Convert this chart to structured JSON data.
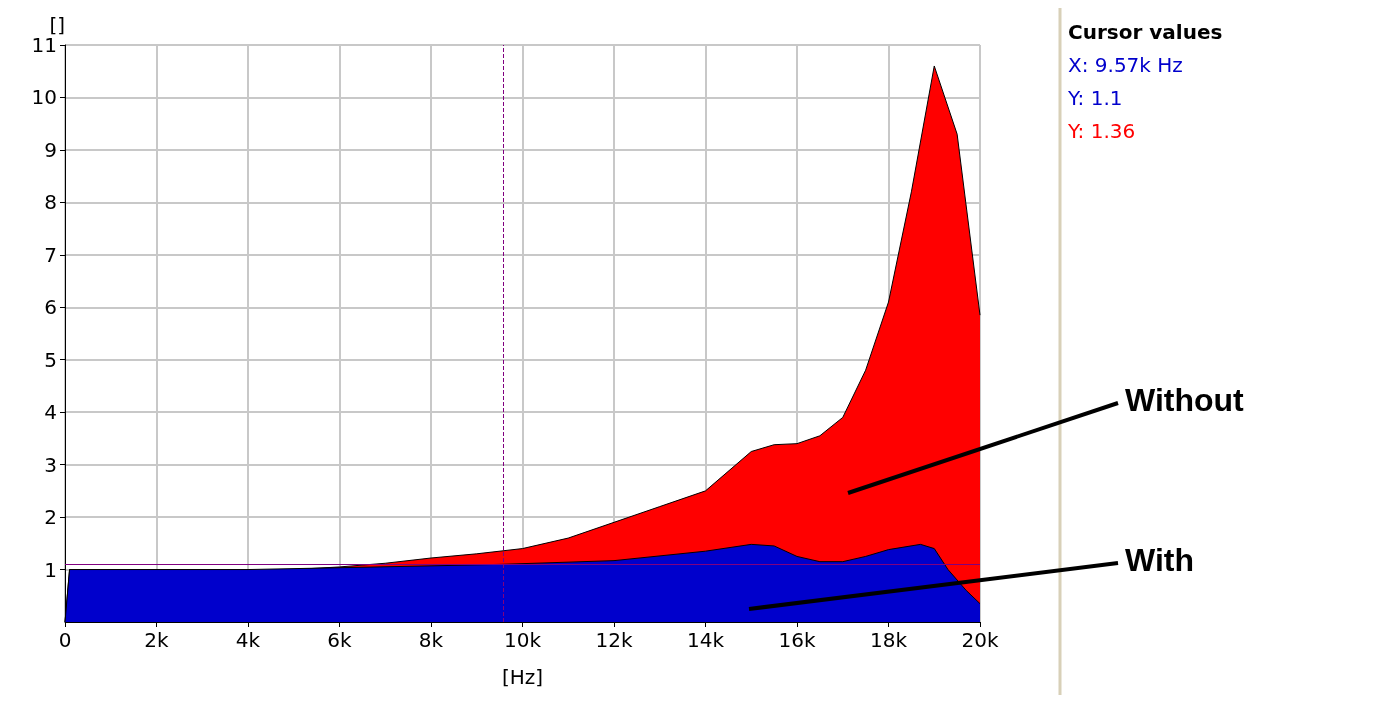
{
  "chart_data": {
    "type": "area",
    "xlabel": "[Hz]",
    "ylabel": "[]",
    "xlim": [
      0,
      20000
    ],
    "ylim": [
      0,
      11
    ],
    "xticks": [
      0,
      {
        "value": 2000,
        "label": "2k"
      },
      {
        "value": 4000,
        "label": "4k"
      },
      {
        "value": 6000,
        "label": "6k"
      },
      {
        "value": 8000,
        "label": "8k"
      },
      {
        "value": 10000,
        "label": "10k"
      },
      {
        "value": 12000,
        "label": "12k"
      },
      {
        "value": 14000,
        "label": "14k"
      },
      {
        "value": 16000,
        "label": "16k"
      },
      {
        "value": 18000,
        "label": "18k"
      },
      {
        "value": 20000,
        "label": "20k"
      }
    ],
    "yticks": [
      1,
      2,
      3,
      4,
      5,
      6,
      7,
      8,
      9,
      10,
      11
    ],
    "grid": true,
    "series": [
      {
        "name": "Without",
        "color": "#ff0000",
        "x": [
          0,
          100,
          2000,
          4000,
          5000,
          6000,
          7000,
          8000,
          9000,
          10000,
          11000,
          12000,
          13000,
          14000,
          15000,
          15500,
          16000,
          16500,
          17000,
          17500,
          18000,
          18500,
          19000,
          19500,
          20000
        ],
        "values": [
          0,
          1.0,
          1.0,
          0.97,
          1.0,
          1.05,
          1.12,
          1.22,
          1.3,
          1.4,
          1.6,
          1.9,
          2.2,
          2.5,
          3.25,
          3.38,
          3.4,
          3.55,
          3.9,
          4.8,
          6.1,
          8.2,
          10.6,
          9.3,
          5.85
        ]
      },
      {
        "name": "With",
        "color": "#0000cc",
        "x": [
          0,
          100,
          4000,
          8000,
          9570,
          12000,
          14000,
          15000,
          15500,
          16000,
          16500,
          17000,
          17500,
          18000,
          18700,
          19000,
          19300,
          19700,
          20000
        ],
        "values": [
          0,
          1.0,
          1.0,
          1.07,
          1.1,
          1.17,
          1.35,
          1.48,
          1.45,
          1.25,
          1.15,
          1.15,
          1.25,
          1.38,
          1.48,
          1.4,
          1.0,
          0.6,
          0.35
        ]
      }
    ],
    "ref_lines": [
      {
        "axis": "x",
        "value": 9570,
        "color": "#800080",
        "line_style": "dashed"
      },
      {
        "axis": "y",
        "value": 1.1,
        "color": "#800080",
        "line_style": "solid"
      }
    ],
    "annotations": [
      "Cursor values",
      "X: 9.57k Hz",
      "Y: 1.1",
      "Y: 1.36"
    ]
  }
}
